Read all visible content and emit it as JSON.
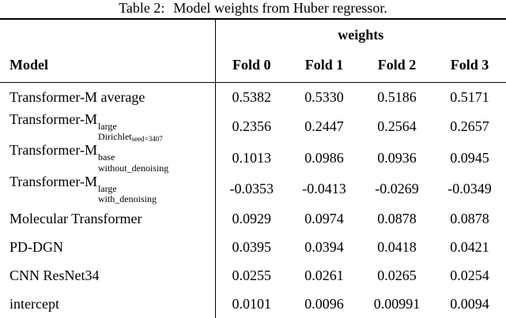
{
  "colors": {
    "background": "#ffffff",
    "text": "#000000",
    "rule": "#000000"
  },
  "caption": {
    "label": "Table 2:",
    "text": "Model weights from Huber regressor."
  },
  "table": {
    "group_header": "weights",
    "columns": [
      "Model",
      "Fold 0",
      "Fold 1",
      "Fold 2",
      "Fold 3"
    ],
    "rows": [
      {
        "model": {
          "base": "Transformer-M average"
        },
        "values": [
          "0.5382",
          "0.5330",
          "0.5186",
          "0.5171"
        ]
      },
      {
        "model": {
          "base": "Transformer-M",
          "sup": "large",
          "sub": "Dirichlet",
          "subsub": "seed=3407"
        },
        "values": [
          "0.2356",
          "0.2447",
          "0.2564",
          "0.2657"
        ]
      },
      {
        "model": {
          "base": "Transformer-M",
          "sup": "base",
          "sub": "without_denoising"
        },
        "values": [
          "0.1013",
          "0.0986",
          "0.0936",
          "0.0945"
        ]
      },
      {
        "model": {
          "base": "Transformer-M",
          "sup": "large",
          "sub": "with_denoising"
        },
        "values": [
          "-0.0353",
          "-0.0413",
          "-0.0269",
          "-0.0349"
        ]
      },
      {
        "model": {
          "base": "Molecular Transformer"
        },
        "values": [
          "0.0929",
          "0.0974",
          "0.0878",
          "0.0878"
        ]
      },
      {
        "model": {
          "base": "PD-DGN"
        },
        "values": [
          "0.0395",
          "0.0394",
          "0.0418",
          "0.0421"
        ]
      },
      {
        "model": {
          "base": "CNN ResNet34"
        },
        "values": [
          "0.0255",
          "0.0261",
          "0.0265",
          "0.0254"
        ]
      },
      {
        "model": {
          "base": "intercept"
        },
        "values": [
          "0.0101",
          "0.0096",
          "0.00991",
          "0.0094"
        ]
      }
    ]
  }
}
